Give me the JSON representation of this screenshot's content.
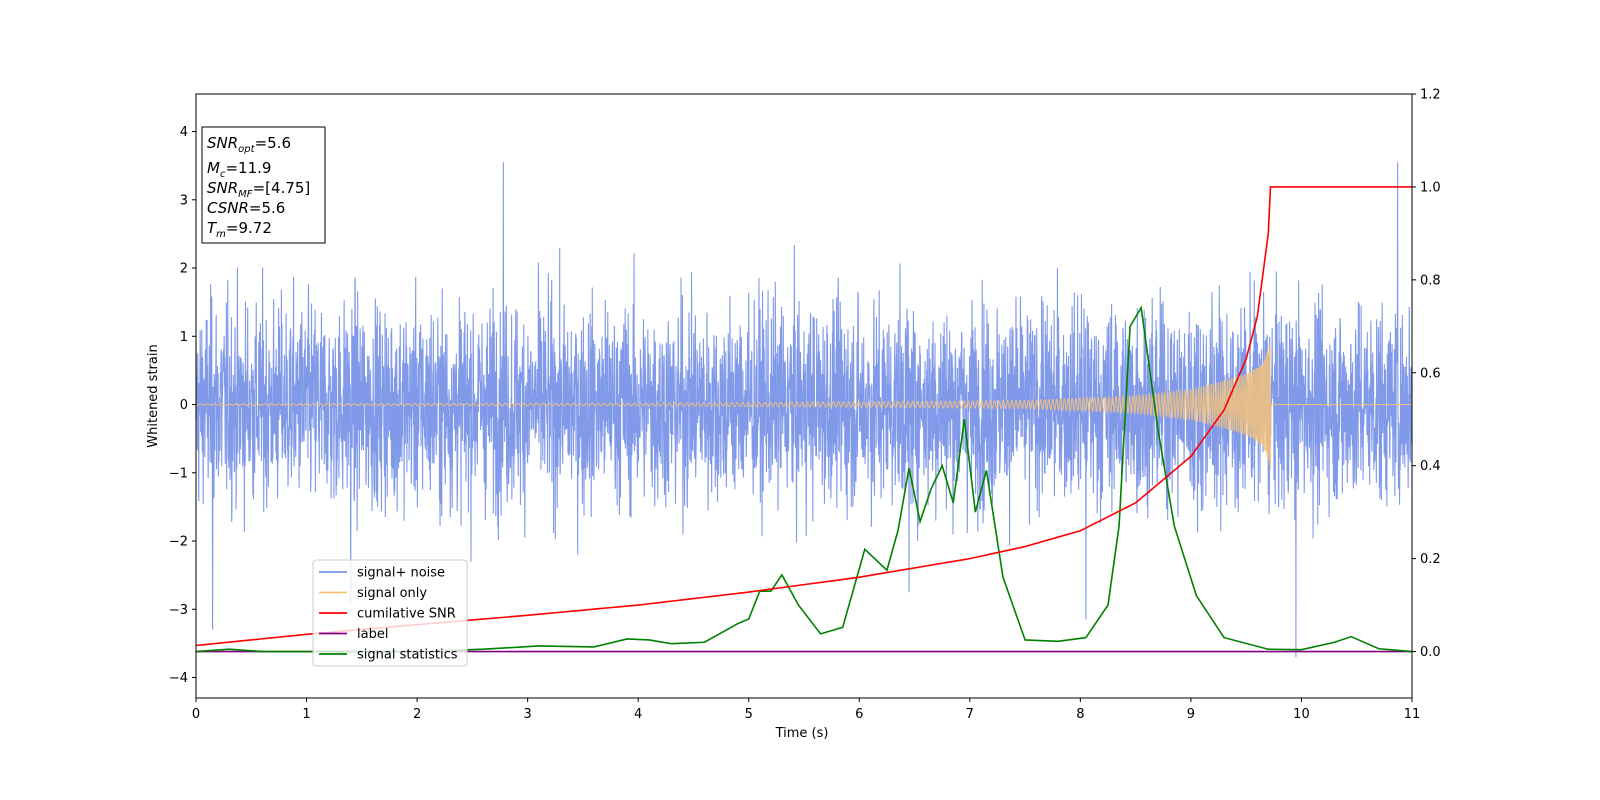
{
  "chart_data": {
    "type": "line",
    "xlabel": "Time (s)",
    "ylabel": "Whitened strain",
    "xlim": [
      0,
      11
    ],
    "ylim": [
      -4.3,
      4.55
    ],
    "y2lim": [
      -0.1,
      1.2
    ],
    "x_ticks": [
      "0",
      "1",
      "2",
      "3",
      "4",
      "5",
      "6",
      "7",
      "8",
      "9",
      "10",
      "11"
    ],
    "y_ticks": [
      "−4",
      "−3",
      "−2",
      "−1",
      "0",
      "1",
      "2",
      "3",
      "4"
    ],
    "y2_ticks": [
      "0.0",
      "0.2",
      "0.4",
      "0.6",
      "0.8",
      "1.0",
      "1.2"
    ],
    "legend_placement": "lower-left",
    "legend": [
      {
        "label": "signal+ noise",
        "color": "#7994e8"
      },
      {
        "label": "signal only",
        "color": "#f5c27a"
      },
      {
        "label": "cumilative SNR",
        "color": "#ff0000"
      },
      {
        "label": "label",
        "color": "#800080"
      },
      {
        "label": "signal statistics",
        "color": "#008000"
      }
    ],
    "info_box": {
      "snr_opt": {
        "var": "SNR",
        "sub": "opt",
        "value": "=5.6"
      },
      "mc": {
        "var": "M",
        "sub": "c",
        "value": "=11.9"
      },
      "snr_mf": {
        "var": "SNR",
        "sub": "MF",
        "value": "=[4.75]"
      },
      "csnr": {
        "var": "CSNR",
        "value": "=5.6"
      },
      "tm": {
        "var": "T",
        "sub": "m",
        "value": "=9.72"
      }
    },
    "series": [
      {
        "name": "signal+ noise",
        "color": "#7994e8",
        "axis": "left",
        "t_start": 0,
        "t_end": 11,
        "typical_abs_amplitude": 1.6,
        "peak_values": [
          {
            "x": 0.15,
            "y": -3.3
          },
          {
            "x": 2.78,
            "y": 3.55
          },
          {
            "x": 1.4,
            "y": -2.9
          },
          {
            "x": 6.45,
            "y": -2.75
          },
          {
            "x": 8.05,
            "y": -3.15
          },
          {
            "x": 9.95,
            "y": -3.7
          },
          {
            "x": 10.87,
            "y": 3.55
          }
        ]
      },
      {
        "name": "signal only",
        "color": "#f5c27a",
        "axis": "left",
        "t_start": 0,
        "t_merge": 9.72,
        "t_end": 11,
        "envelope": [
          {
            "x": 0.0,
            "y": 0.01
          },
          {
            "x": 4.0,
            "y": 0.02
          },
          {
            "x": 6.0,
            "y": 0.04
          },
          {
            "x": 7.5,
            "y": 0.06
          },
          {
            "x": 8.5,
            "y": 0.13
          },
          {
            "x": 9.0,
            "y": 0.22
          },
          {
            "x": 9.3,
            "y": 0.35
          },
          {
            "x": 9.5,
            "y": 0.45
          },
          {
            "x": 9.65,
            "y": 0.6
          },
          {
            "x": 9.72,
            "y": 0.95
          }
        ]
      },
      {
        "name": "cumilative SNR",
        "color": "#ff0000",
        "axis": "right",
        "points": [
          {
            "x": 0.0,
            "y": 0.013
          },
          {
            "x": 1.0,
            "y": 0.037
          },
          {
            "x": 2.0,
            "y": 0.058
          },
          {
            "x": 3.0,
            "y": 0.078
          },
          {
            "x": 4.0,
            "y": 0.1
          },
          {
            "x": 5.0,
            "y": 0.128
          },
          {
            "x": 6.0,
            "y": 0.16
          },
          {
            "x": 7.0,
            "y": 0.2
          },
          {
            "x": 7.5,
            "y": 0.226
          },
          {
            "x": 8.0,
            "y": 0.26
          },
          {
            "x": 8.5,
            "y": 0.32
          },
          {
            "x": 9.0,
            "y": 0.42
          },
          {
            "x": 9.3,
            "y": 0.52
          },
          {
            "x": 9.5,
            "y": 0.63
          },
          {
            "x": 9.6,
            "y": 0.72
          },
          {
            "x": 9.7,
            "y": 0.9
          },
          {
            "x": 9.72,
            "y": 1.0
          },
          {
            "x": 11.0,
            "y": 1.0
          }
        ]
      },
      {
        "name": "label",
        "color": "#800080",
        "axis": "right",
        "points": [
          {
            "x": 0.0,
            "y": 0.0
          },
          {
            "x": 11.0,
            "y": 0.0
          }
        ]
      },
      {
        "name": "signal statistics",
        "color": "#008000",
        "axis": "right",
        "points": [
          {
            "x": 0.0,
            "y": 0.0
          },
          {
            "x": 0.3,
            "y": 0.005
          },
          {
            "x": 0.6,
            "y": 0.0
          },
          {
            "x": 1.0,
            "y": 0.0
          },
          {
            "x": 2.0,
            "y": 0.0
          },
          {
            "x": 2.6,
            "y": 0.005
          },
          {
            "x": 3.1,
            "y": 0.012
          },
          {
            "x": 3.6,
            "y": 0.01
          },
          {
            "x": 3.9,
            "y": 0.027
          },
          {
            "x": 4.1,
            "y": 0.025
          },
          {
            "x": 4.3,
            "y": 0.017
          },
          {
            "x": 4.6,
            "y": 0.02
          },
          {
            "x": 4.9,
            "y": 0.06
          },
          {
            "x": 5.0,
            "y": 0.07
          },
          {
            "x": 5.1,
            "y": 0.13
          },
          {
            "x": 5.2,
            "y": 0.13
          },
          {
            "x": 5.3,
            "y": 0.165
          },
          {
            "x": 5.45,
            "y": 0.1
          },
          {
            "x": 5.65,
            "y": 0.038
          },
          {
            "x": 5.85,
            "y": 0.052
          },
          {
            "x": 6.05,
            "y": 0.22
          },
          {
            "x": 6.25,
            "y": 0.175
          },
          {
            "x": 6.35,
            "y": 0.26
          },
          {
            "x": 6.45,
            "y": 0.395
          },
          {
            "x": 6.55,
            "y": 0.28
          },
          {
            "x": 6.65,
            "y": 0.35
          },
          {
            "x": 6.75,
            "y": 0.4
          },
          {
            "x": 6.85,
            "y": 0.32
          },
          {
            "x": 6.95,
            "y": 0.5
          },
          {
            "x": 7.05,
            "y": 0.3
          },
          {
            "x": 7.15,
            "y": 0.39
          },
          {
            "x": 7.3,
            "y": 0.16
          },
          {
            "x": 7.5,
            "y": 0.025
          },
          {
            "x": 7.8,
            "y": 0.022
          },
          {
            "x": 8.05,
            "y": 0.03
          },
          {
            "x": 8.25,
            "y": 0.1
          },
          {
            "x": 8.35,
            "y": 0.27
          },
          {
            "x": 8.45,
            "y": 0.7
          },
          {
            "x": 8.55,
            "y": 0.74
          },
          {
            "x": 8.7,
            "y": 0.48
          },
          {
            "x": 8.85,
            "y": 0.27
          },
          {
            "x": 9.05,
            "y": 0.12
          },
          {
            "x": 9.3,
            "y": 0.03
          },
          {
            "x": 9.7,
            "y": 0.005
          },
          {
            "x": 10.0,
            "y": 0.004
          },
          {
            "x": 10.3,
            "y": 0.02
          },
          {
            "x": 10.45,
            "y": 0.032
          },
          {
            "x": 10.7,
            "y": 0.006
          },
          {
            "x": 11.0,
            "y": 0.0
          }
        ]
      }
    ]
  }
}
